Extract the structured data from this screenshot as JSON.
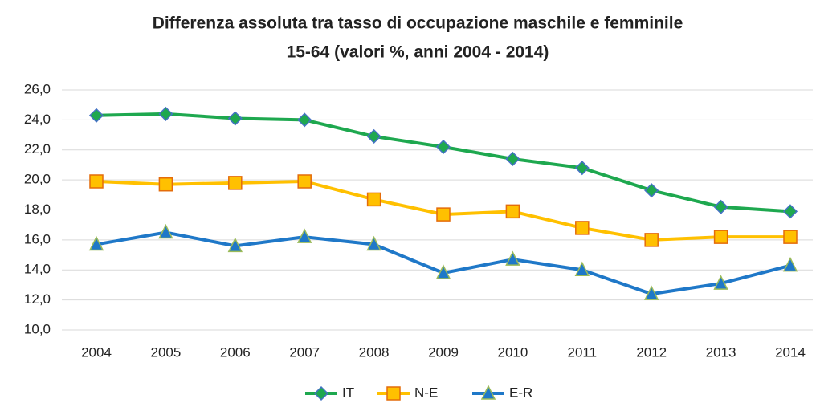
{
  "chart_data": {
    "type": "line",
    "title": "Differenza assoluta tra tasso di occupazione maschile e femminile",
    "subtitle": "15-64 (valori %, anni 2004 - 2014)",
    "categories": [
      "2004",
      "2005",
      "2006",
      "2007",
      "2008",
      "2009",
      "2010",
      "2011",
      "2012",
      "2013",
      "2014"
    ],
    "series": [
      {
        "name": "IT",
        "color": "#1ea84f",
        "marker": "diamond",
        "marker_edge": "#4472c4",
        "values": [
          24.3,
          24.4,
          24.1,
          24.0,
          22.9,
          22.2,
          21.4,
          20.8,
          19.3,
          18.2,
          17.9
        ]
      },
      {
        "name": "N-E",
        "color": "#ffc000",
        "marker": "square",
        "marker_edge": "#e46c0a",
        "values": [
          19.9,
          19.7,
          19.8,
          19.9,
          18.7,
          17.7,
          17.9,
          16.8,
          16.0,
          16.2,
          16.2
        ]
      },
      {
        "name": "E-R",
        "color": "#1f78c8",
        "marker": "triangle",
        "marker_edge": "#9bbb59",
        "values": [
          15.7,
          16.5,
          15.6,
          16.2,
          15.7,
          13.8,
          14.7,
          14.0,
          12.4,
          13.1,
          14.3
        ]
      }
    ],
    "ylim": [
      10,
      26
    ],
    "yticks": [
      {
        "value": 10,
        "label": "10,0"
      },
      {
        "value": 12,
        "label": "12,0"
      },
      {
        "value": 14,
        "label": "14,0"
      },
      {
        "value": 16,
        "label": "16,0"
      },
      {
        "value": 18,
        "label": "18,0"
      },
      {
        "value": 20,
        "label": "20,0"
      },
      {
        "value": 22,
        "label": "22,0"
      },
      {
        "value": 24,
        "label": "24,0"
      },
      {
        "value": 26,
        "label": "26,0"
      }
    ],
    "grid": true,
    "legend": "bottom"
  }
}
